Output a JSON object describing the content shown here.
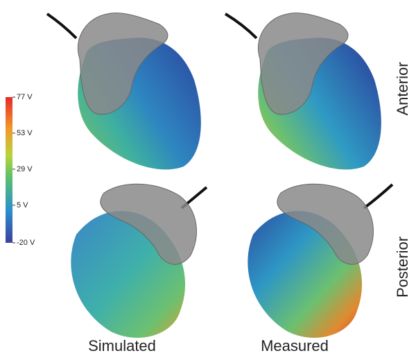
{
  "colorbar": {
    "lim": [
      -20,
      77
    ],
    "ticks": [
      {
        "value": 77,
        "label": "77 V"
      },
      {
        "value": 53,
        "label": "53 V"
      },
      {
        "value": 29,
        "label": "29 V"
      },
      {
        "value": 5,
        "label": "5 V"
      },
      {
        "value": -20,
        "label": "-20 V"
      }
    ]
  },
  "rows": [
    "Anterior",
    "Posterior"
  ],
  "columns": [
    "Simulated",
    "Measured"
  ]
}
